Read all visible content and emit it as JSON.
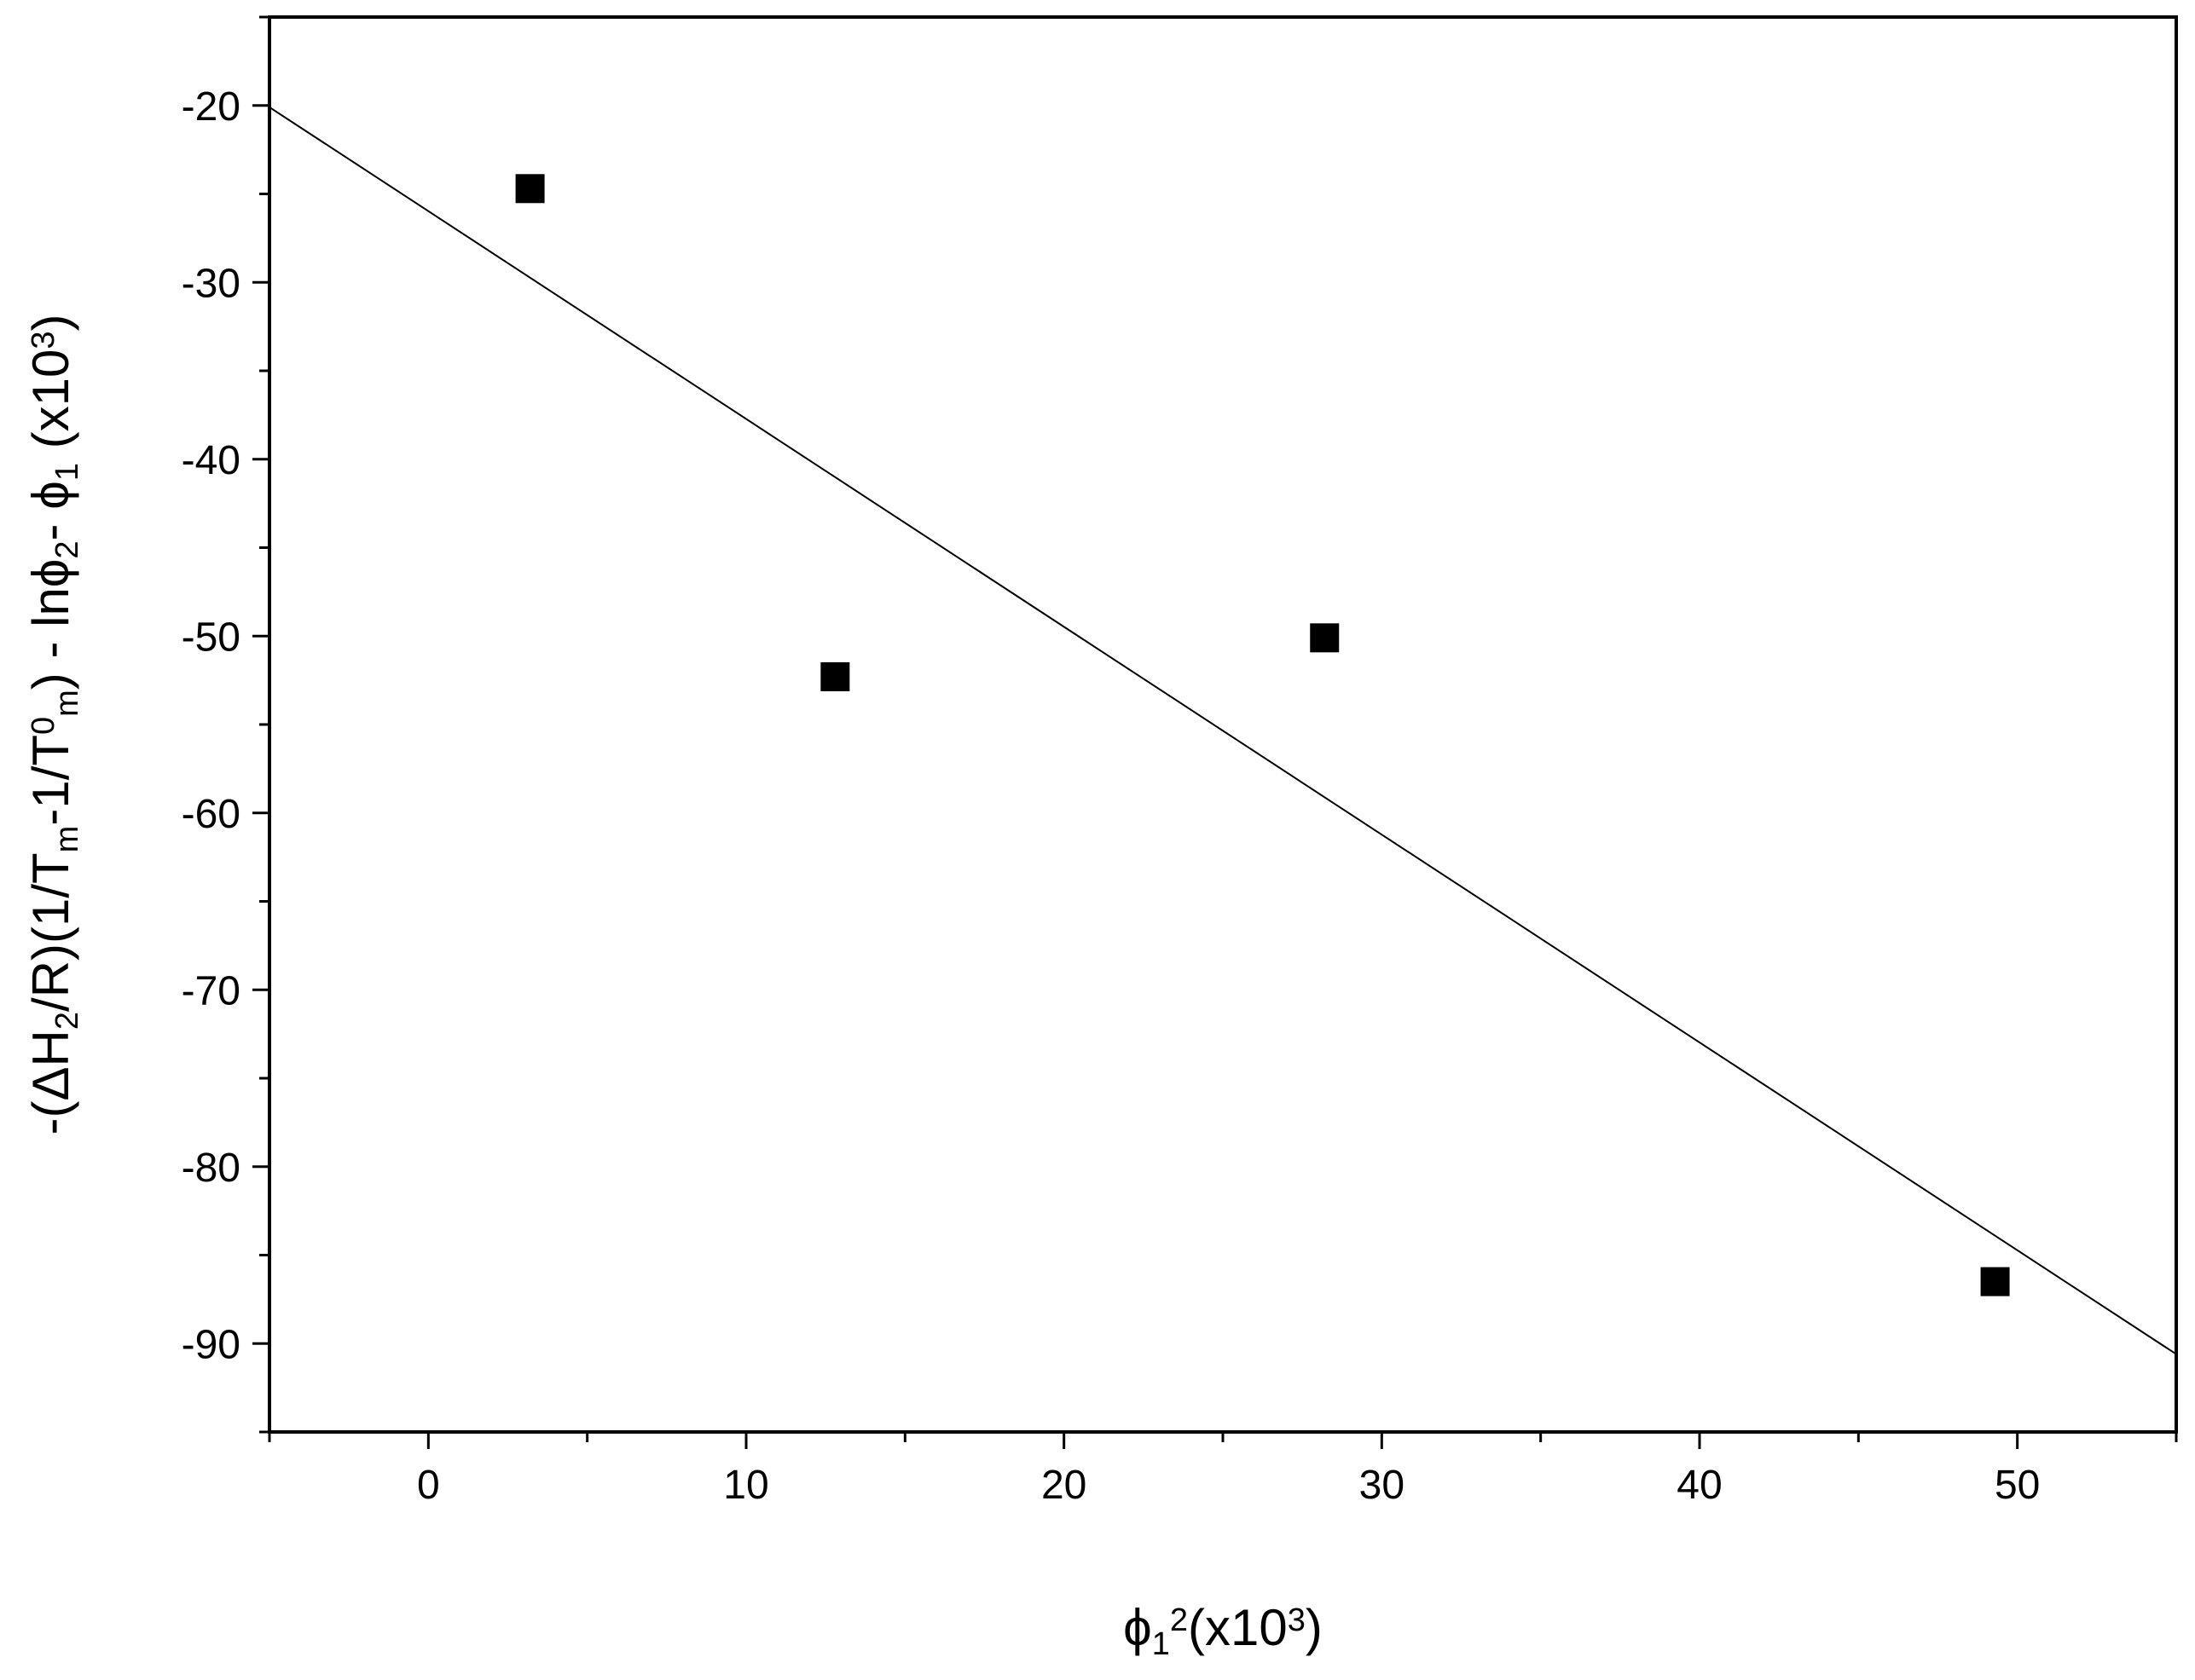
{
  "chart_data": {
    "type": "scatter",
    "xlabel": {
      "parts": [
        {
          "text": "ϕ",
          "mode": "normal"
        },
        {
          "text": "1",
          "mode": "sub"
        },
        {
          "text": "2",
          "mode": "sup"
        },
        {
          "text": "(x10",
          "mode": "normal"
        },
        {
          "text": "3",
          "mode": "sup"
        },
        {
          "text": ")",
          "mode": "normal"
        }
      ]
    },
    "ylabel": {
      "parts": [
        {
          "text": "-(ΔH",
          "mode": "normal"
        },
        {
          "text": "2",
          "mode": "sub"
        },
        {
          "text": "/R)(1/T",
          "mode": "normal"
        },
        {
          "text": "m",
          "mode": "sub"
        },
        {
          "text": "-1/T",
          "mode": "normal"
        },
        {
          "text": "0",
          "mode": "sup"
        },
        {
          "text": "m",
          "mode": "sub"
        },
        {
          "text": ") - lnϕ",
          "mode": "normal"
        },
        {
          "text": "2",
          "mode": "sub"
        },
        {
          "text": "- ϕ",
          "mode": "normal"
        },
        {
          "text": "1",
          "mode": "sub"
        },
        {
          "text": "  (x10",
          "mode": "normal"
        },
        {
          "text": "3",
          "mode": "sup"
        },
        {
          "text": ")",
          "mode": "normal"
        }
      ]
    },
    "xlim": [
      -5,
      55
    ],
    "ylim": [
      -95,
      -15
    ],
    "x_ticks": [
      "0",
      "10",
      "20",
      "30",
      "40",
      "50"
    ],
    "y_ticks": [
      "-20",
      "-30",
      "-40",
      "-50",
      "-60",
      "-70",
      "-80",
      "-90"
    ],
    "grid": false,
    "legend": "none",
    "series": [
      {
        "marker": "square",
        "color": "#000000",
        "points": [
          {
            "x": 3.2,
            "y": -24.7
          },
          {
            "x": 12.8,
            "y": -52.3
          },
          {
            "x": 28.2,
            "y": -50.1
          },
          {
            "x": 49.3,
            "y": -86.5
          }
        ]
      }
    ],
    "fit_line": {
      "color": "#000000",
      "start": {
        "x": -5,
        "y": -20.1
      },
      "end": {
        "x": 55,
        "y": -90.6
      }
    }
  }
}
